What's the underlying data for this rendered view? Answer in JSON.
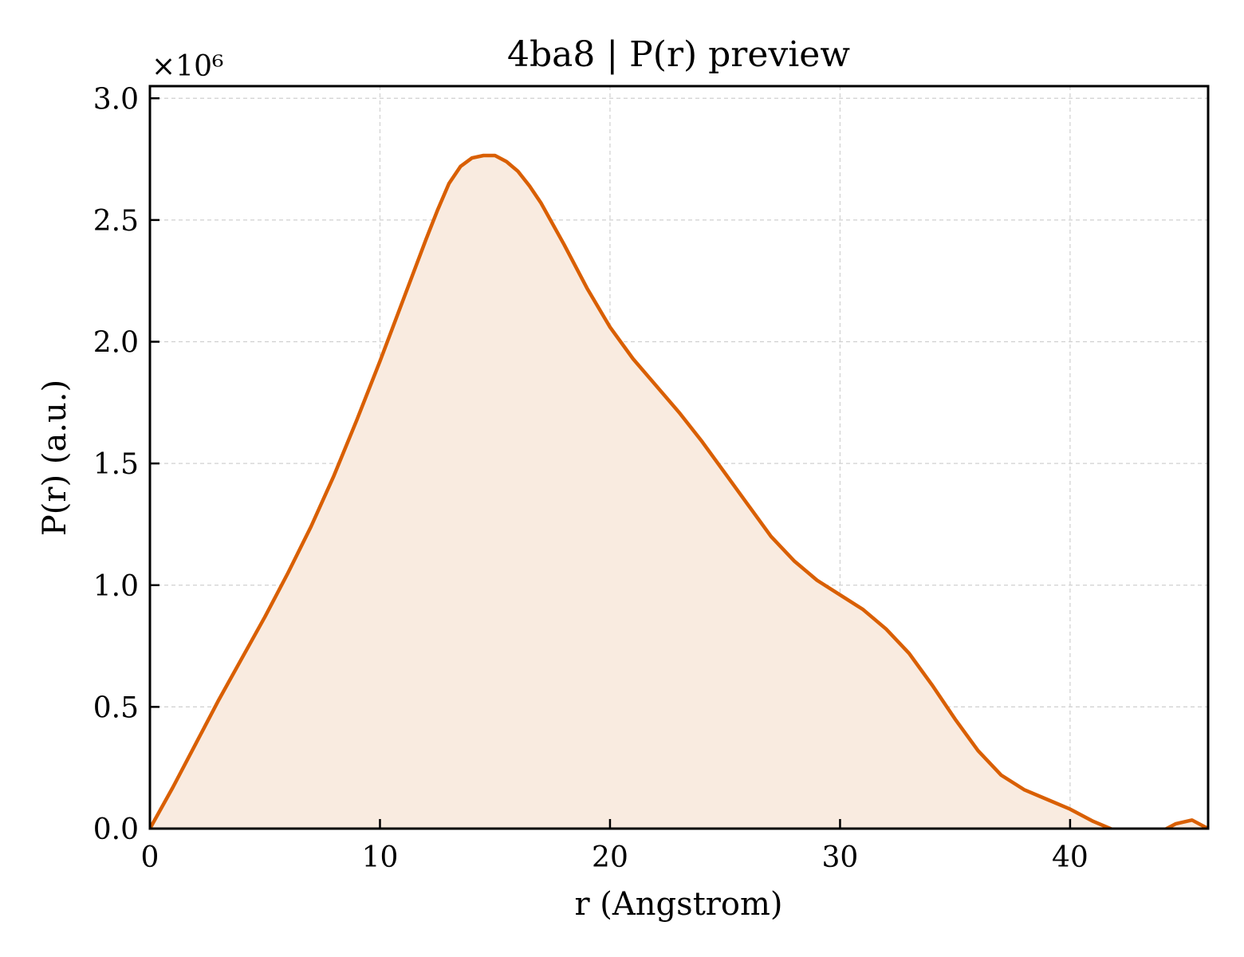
{
  "chart_data": {
    "type": "area",
    "title": "4ba8 | P(r) preview",
    "xlabel": "r (Angstrom)",
    "ylabel": "P(r) (a.u.)",
    "y_offset_label": "×10⁶",
    "xlim": [
      0,
      46
    ],
    "ylim": [
      0,
      3.05
    ],
    "y_scale_factor": 1000000,
    "x_ticks": [
      0,
      10,
      20,
      30,
      40
    ],
    "y_ticks": [
      0.0,
      0.5,
      1.0,
      1.5,
      2.0,
      2.5,
      3.0
    ],
    "x_tick_labels": [
      "0",
      "10",
      "20",
      "30",
      "40"
    ],
    "y_tick_labels": [
      "0.0",
      "0.5",
      "1.0",
      "1.5",
      "2.0",
      "2.5",
      "3.0"
    ],
    "grid": true,
    "line_color": "#d95f02",
    "fill_color": "#f9ebe0",
    "series": [
      {
        "x": [
          0,
          1,
          2,
          3,
          4,
          5,
          6,
          7,
          8,
          9,
          10,
          11,
          12,
          12.5,
          13,
          13.5,
          14,
          14.5,
          15,
          15.5,
          16,
          16.5,
          17,
          18,
          19,
          20,
          21,
          22,
          23,
          24,
          25,
          26,
          27,
          28,
          29,
          30,
          31,
          32,
          33,
          34,
          35,
          36,
          37,
          38,
          39,
          40,
          41,
          42,
          42.2,
          43,
          44,
          44.6,
          45.3,
          46
        ],
        "y": [
          0.0,
          0.17,
          0.35,
          0.53,
          0.7,
          0.87,
          1.05,
          1.24,
          1.45,
          1.68,
          1.92,
          2.17,
          2.42,
          2.54,
          2.65,
          2.72,
          2.755,
          2.765,
          2.765,
          2.74,
          2.7,
          2.64,
          2.57,
          2.4,
          2.22,
          2.06,
          1.93,
          1.82,
          1.71,
          1.59,
          1.46,
          1.33,
          1.2,
          1.1,
          1.02,
          0.96,
          0.9,
          0.82,
          0.72,
          0.59,
          0.45,
          0.32,
          0.22,
          0.16,
          0.12,
          0.08,
          0.03,
          -0.01,
          -0.01,
          -0.01,
          -0.01,
          0.02,
          0.035,
          0.0
        ]
      }
    ]
  }
}
